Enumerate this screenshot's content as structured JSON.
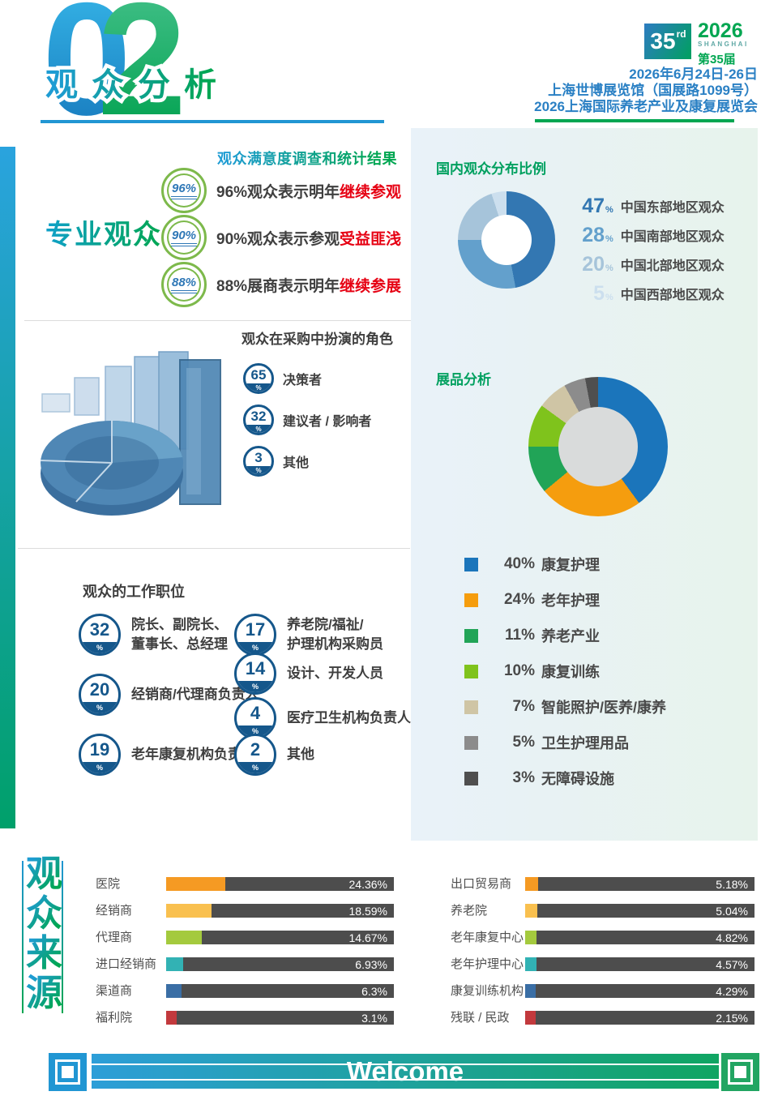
{
  "page": {
    "section_number_0": "0",
    "section_number_2": "2",
    "section_title": "观众分析"
  },
  "header": {
    "edition_number": "35",
    "edition_suffix": "rd",
    "year": "2026",
    "city": "SHANGHAI",
    "edition_cn": "第35届",
    "lines": [
      "2026年6月24日-26日",
      "上海世博展览馆（国展路1099号）",
      "2026上海国际养老产业及康复展览会"
    ]
  },
  "satisfaction": {
    "heading": "观众满意度调查和统计结果",
    "side_label": "专业观众",
    "items": [
      {
        "value": "96%",
        "text": "96%观众表示明年",
        "highlight": "继续参观"
      },
      {
        "value": "90%",
        "text": "90%观众表示参观",
        "highlight": "受益匪浅"
      },
      {
        "value": "88%",
        "text": "88%展商表示明年",
        "highlight": "继续参展"
      }
    ]
  },
  "roles": {
    "heading": "观众在采购中扮演的角色",
    "items": [
      {
        "value": "65",
        "unit": "%",
        "label": "决策者"
      },
      {
        "value": "32",
        "unit": "%",
        "label": "建议者 / 影响者"
      },
      {
        "value": "3",
        "unit": "%",
        "label": "其他"
      }
    ]
  },
  "jobs": {
    "heading": "观众的工作职位",
    "left": [
      {
        "value": "32",
        "unit": "%",
        "lines": [
          "院长、副院长、",
          "董事长、总经理"
        ]
      },
      {
        "value": "20",
        "unit": "%",
        "lines": [
          "经销商/代理商负责人"
        ]
      },
      {
        "value": "19",
        "unit": "%",
        "lines": [
          "老年康复机构负责人"
        ]
      }
    ],
    "right": [
      {
        "value": "17",
        "unit": "%",
        "lines": [
          "养老院/福祉/",
          "护理机构采购员"
        ]
      },
      {
        "value": "14",
        "unit": "%",
        "lines": [
          "设计、开发人员"
        ]
      },
      {
        "value": "4",
        "unit": "%",
        "lines": [
          "医疗卫生机构负责人"
        ]
      },
      {
        "value": "2",
        "unit": "%",
        "lines": [
          "其他"
        ]
      }
    ]
  },
  "sources_heading_chars": [
    "观",
    "众",
    "来",
    "源"
  ],
  "banner": {
    "welcome": "Welcome"
  },
  "colors": {
    "brand_blue": "#2196d3",
    "brand_green": "#00a651",
    "header_text_blue": "#2a80c4",
    "highlight_red": "#e60113",
    "stat_circle_blue": "#15578b",
    "ring_green": "#7db94b",
    "bar_track_gray": "#4d4d4d"
  },
  "chart_data": [
    {
      "type": "pie",
      "title": "国内观众分布比例",
      "hole": true,
      "legend_position": "right",
      "labels": [
        "中国东部地区观众",
        "中国南部地区观众",
        "中国北部地区观众",
        "中国西部地区观众"
      ],
      "values": [
        47,
        28,
        20,
        5
      ],
      "value_display": [
        "47",
        "28",
        "20",
        "5"
      ],
      "colors": [
        "#3377b2",
        "#63a0cc",
        "#a6c4da",
        "#ccdfee"
      ],
      "hole_color": "#ffffff"
    },
    {
      "type": "pie",
      "title": "展品分析",
      "hole": true,
      "legend_position": "bottom",
      "labels": [
        "康复护理",
        "老年护理",
        "养老产业",
        "康复训练",
        "智能照护/医养/康养",
        "卫生护理用品",
        "无障碍设施"
      ],
      "values": [
        40,
        24,
        11,
        10,
        7,
        5,
        3
      ],
      "value_display": [
        "40%",
        "24%",
        "11%",
        "10%",
        "7%",
        "5%",
        "3%"
      ],
      "colors": [
        "#1b75bb",
        "#f59d0e",
        "#21a457",
        "#7fc31c",
        "#cfc5a5",
        "#8c8c8c",
        "#4f4f4f"
      ],
      "hole_color": "#d9dbdb"
    },
    {
      "type": "bar",
      "title": "观众来源",
      "orientation": "horizontal",
      "track_color": "#4d4d4d",
      "groups": [
        {
          "categories": [
            "医院",
            "经销商",
            "代理商",
            "进口经销商",
            "渠道商",
            "福利院"
          ],
          "values": [
            24.36,
            18.59,
            14.67,
            6.93,
            6.3,
            3.1
          ],
          "value_display": [
            "24.36%",
            "18.59%",
            "14.67%",
            "6.93%",
            "6.3%",
            "3.1%"
          ],
          "colors": [
            "#f59a23",
            "#f9c04f",
            "#a4ca3e",
            "#32b2b4",
            "#3a6ea5",
            "#c2393d"
          ]
        },
        {
          "categories": [
            "出口贸易商",
            "养老院",
            "老年康复中心",
            "老年护理中心",
            "康复训练机构",
            "残联 / 民政"
          ],
          "values": [
            5.18,
            5.04,
            4.82,
            4.57,
            4.29,
            2.15
          ],
          "value_display": [
            "5.18%",
            "5.04%",
            "4.82%",
            "4.57%",
            "4.29%",
            "2.15%"
          ],
          "colors": [
            "#f59a23",
            "#f9c04f",
            "#a4ca3e",
            "#32b2b4",
            "#3a6ea5",
            "#c2393d"
          ]
        }
      ]
    }
  ]
}
